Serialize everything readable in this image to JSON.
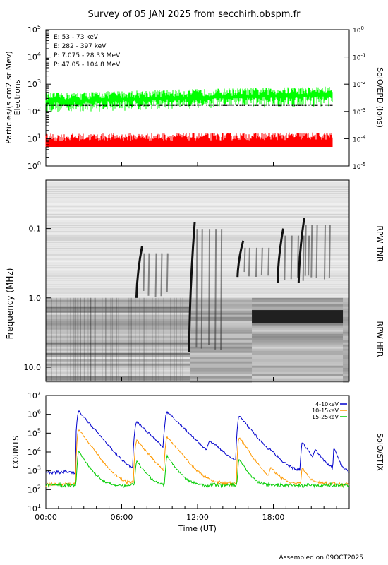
{
  "title": "Survey of 05 JAN 2025 from secchirh.obspm.fr",
  "footer": "Assembled on 09OCT2025",
  "chart_data": [
    {
      "type": "line",
      "panel": "epd",
      "ylabel": "Particles/(s cm2 sr Mev)",
      "ylabel2": "Electrons",
      "right_label": "SolO/EPD (ions)",
      "scale": "log",
      "ylim": [
        1,
        100000
      ],
      "ytick_exponents": [
        0,
        1,
        2,
        3,
        4,
        5
      ],
      "ylim_right": [
        1e-05,
        1
      ],
      "ytick_right_exponents": [
        -5,
        -4,
        -3,
        -2,
        -1,
        0
      ],
      "xlim_hours": [
        0,
        24
      ],
      "series": [
        {
          "name": "E: 53 - 73 keV",
          "color": "#00ff00",
          "level_start": 250,
          "level_end": 450,
          "level_min": 100
        },
        {
          "name": "E: 282 - 397 keV",
          "color": "#ff0000",
          "level_start": 8,
          "level_end": 9,
          "level_min": 5
        },
        {
          "name": "P: 7.075 - 28.33 MeV",
          "color": "#000000",
          "level_start": 160,
          "level_end": 160,
          "level_min": 160
        },
        {
          "name": "P: 47.05 - 104.8 MeV",
          "color": "#0000cc",
          "level_start": null,
          "level_end": null,
          "level_min": null
        }
      ]
    },
    {
      "type": "heatmap",
      "panel": "rpw",
      "ylabel": "Frequency (MHz)",
      "scale": "log",
      "ylim": [
        0.02,
        16
      ],
      "yticks": [
        "0.1",
        "1.0",
        "10.0"
      ],
      "bands": [
        {
          "label": "RPW TNR",
          "range_mhz": [
            0.02,
            1.0
          ]
        },
        {
          "label": "RPW HFR",
          "range_mhz": [
            1.0,
            16
          ]
        }
      ],
      "features": [
        {
          "kind": "type III burst",
          "time": "07:10",
          "from_mhz": 0.18,
          "to_mhz": 1.0
        },
        {
          "kind": "type III burst",
          "time": "11:20",
          "from_mhz": 0.08,
          "to_mhz": 6.0
        },
        {
          "kind": "type III burst",
          "time": "15:10",
          "from_mhz": 0.15,
          "to_mhz": 0.5
        },
        {
          "kind": "type III burst",
          "time": "18:20",
          "from_mhz": 0.1,
          "to_mhz": 0.6
        },
        {
          "kind": "type III burst",
          "time": "20:00",
          "from_mhz": 0.07,
          "to_mhz": 0.6
        }
      ]
    },
    {
      "type": "line",
      "panel": "stix",
      "ylabel": "COUNTS",
      "right_label": "SolO/STIX",
      "xlabel": "Time (UT)",
      "scale": "log",
      "ylim": [
        10,
        10000000
      ],
      "ytick_exponents": [
        1,
        2,
        3,
        4,
        5,
        6,
        7
      ],
      "xticks": [
        "00:00",
        "06:00",
        "12:00",
        "18:00"
      ],
      "xlim_hours": [
        0,
        24
      ],
      "series": [
        {
          "name": "4-10keV",
          "color": "#0000cc",
          "baseline": 800,
          "peaks": [
            [
              2.6,
              1500000,
              0.25
            ],
            [
              7.2,
              400000,
              0.3
            ],
            [
              9.6,
              1300000,
              0.3
            ],
            [
              15.3,
              800000,
              0.25
            ],
            [
              13.0,
              30000,
              0.35
            ],
            [
              17.8,
              4000,
              0.25
            ],
            [
              20.3,
              30000,
              0.2
            ],
            [
              21.3,
              10000,
              0.2
            ],
            [
              22.8,
              15000,
              0.1
            ]
          ]
        },
        {
          "name": "10-15keV",
          "color": "#ff9900",
          "baseline": 190,
          "peaks": [
            [
              2.6,
              150000,
              0.22
            ],
            [
              7.2,
              40000,
              0.25
            ],
            [
              9.6,
              60000,
              0.25
            ],
            [
              15.3,
              60000,
              0.2
            ],
            [
              17.8,
              1200,
              0.2
            ],
            [
              20.3,
              1200,
              0.15
            ]
          ]
        },
        {
          "name": "15-25keV",
          "color": "#00cc00",
          "baseline": 160,
          "peaks": [
            [
              2.6,
              10000,
              0.2
            ],
            [
              7.2,
              3000,
              0.2
            ],
            [
              9.6,
              6000,
              0.2
            ],
            [
              15.3,
              4000,
              0.18
            ]
          ]
        }
      ]
    }
  ]
}
